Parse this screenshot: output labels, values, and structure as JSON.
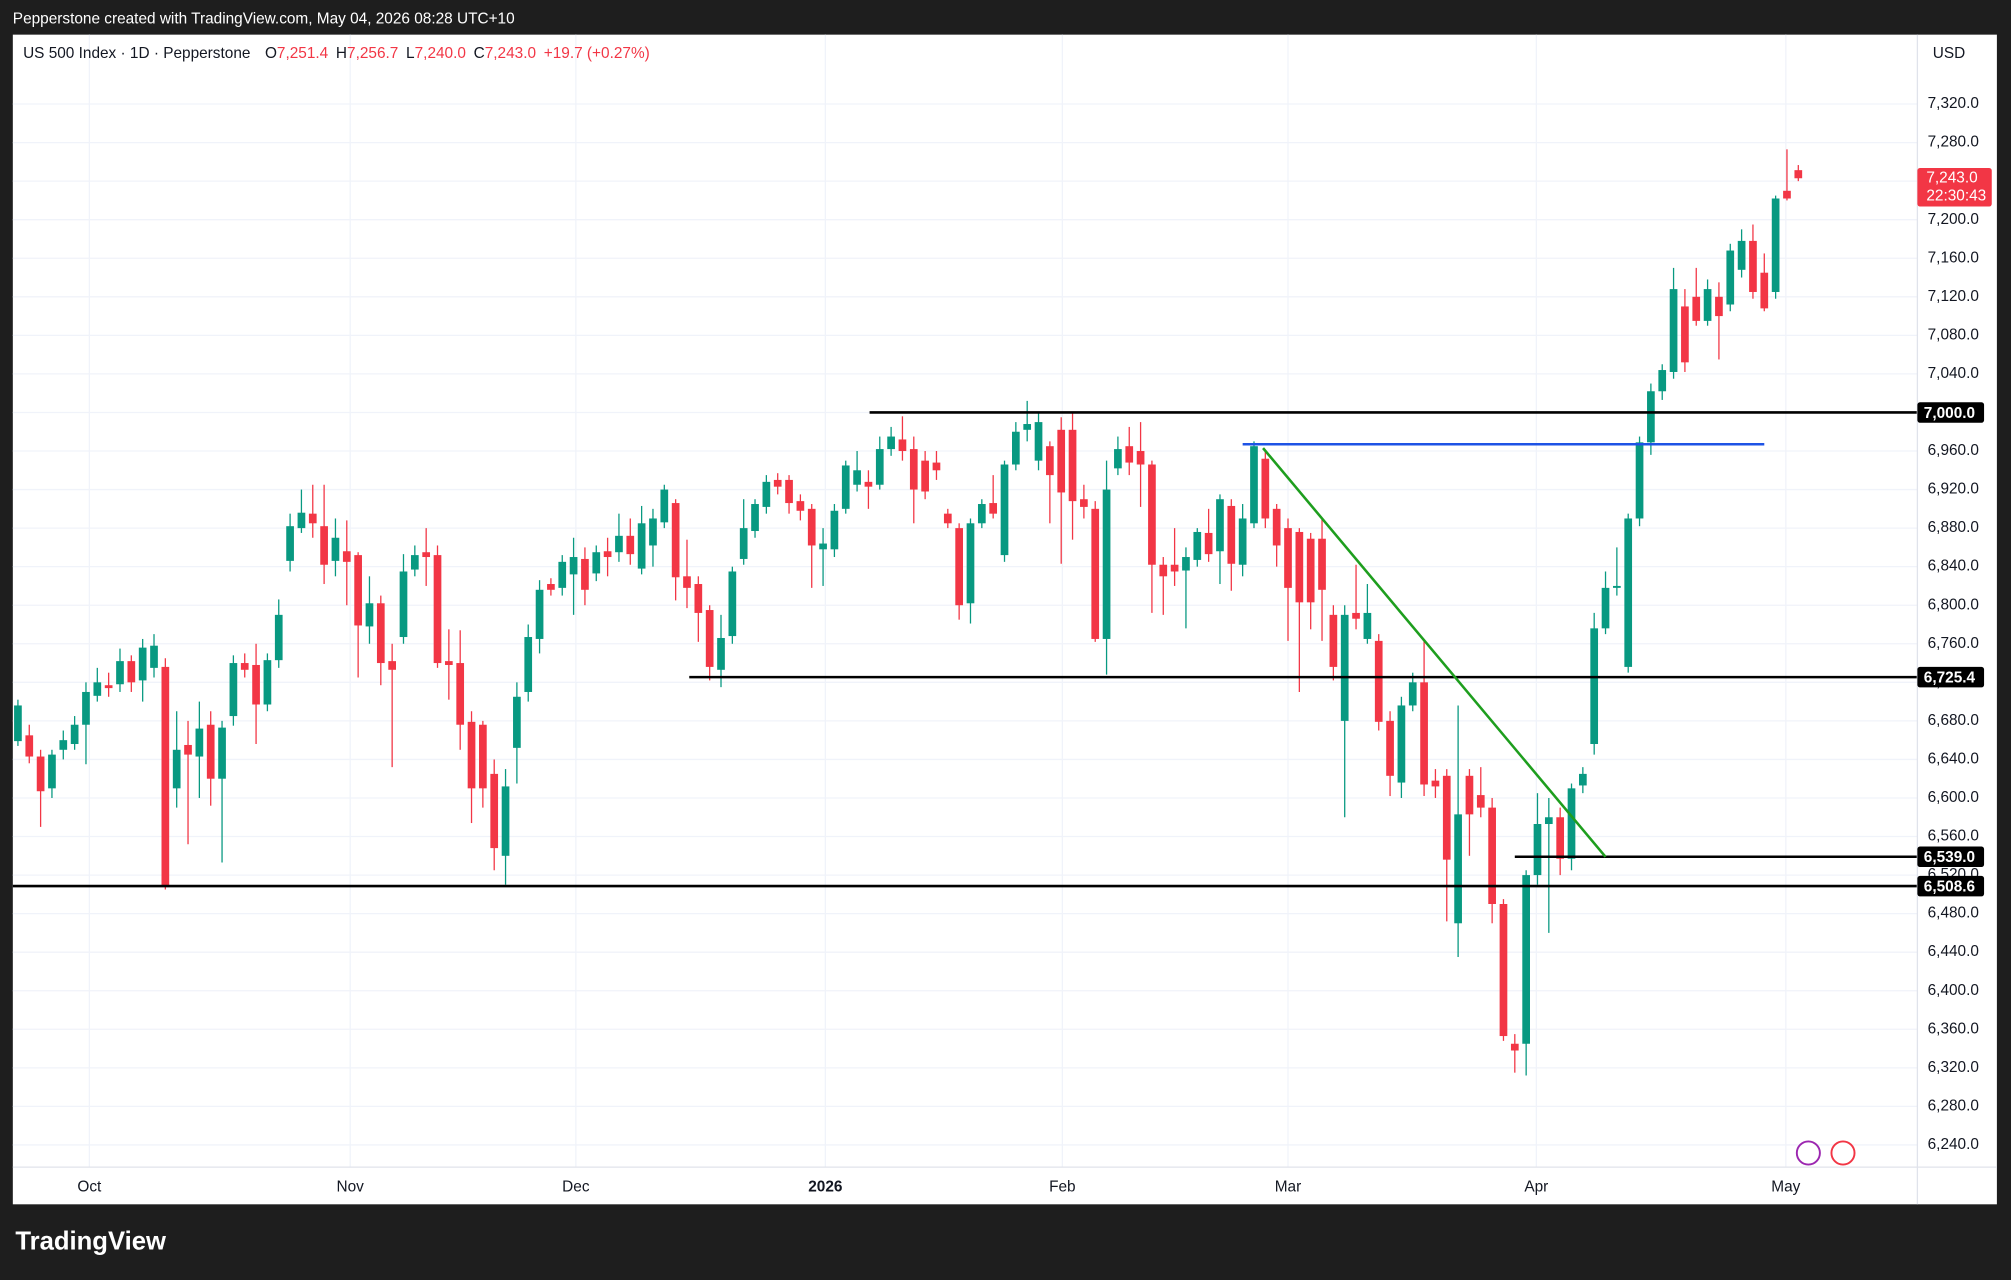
{
  "header": "Pepperstone created with TradingView.com, May 04, 2026 08:28 UTC+10",
  "footer": {
    "brand": "TradingView"
  },
  "chart_data": {
    "type": "candlestick",
    "legend": {
      "symbol": "US 500 Index · 1D · Pepperstone",
      "ohlc": [
        {
          "key": "O",
          "value": "7,251.4"
        },
        {
          "key": "H",
          "value": "7,256.7"
        },
        {
          "key": "L",
          "value": "7,240.0"
        },
        {
          "key": "C",
          "value": "7,243.0"
        }
      ],
      "change": "+19.7 (+0.27%)"
    },
    "currency": "USD",
    "up_color": "#089981",
    "down_color": "#f23645",
    "xlim": [
      -0.45,
      167.5
    ],
    "xticks": [
      {
        "value": 6.3,
        "label": "Oct"
      },
      {
        "value": 29.3,
        "label": "Nov"
      },
      {
        "value": 49.2,
        "label": "Dec"
      },
      {
        "value": 71.2,
        "label": "2026"
      },
      {
        "value": 92.1,
        "label": "Feb"
      },
      {
        "value": 112,
        "label": "Mar"
      },
      {
        "value": 133.9,
        "label": "Apr"
      },
      {
        "value": 155.9,
        "label": "May"
      }
    ],
    "ylim": [
      6217,
      7392
    ],
    "yticks": [
      {
        "value": 6240,
        "label": "6,240.0"
      },
      {
        "value": 6280,
        "label": "6,280.0"
      },
      {
        "value": 6320,
        "label": "6,320.0"
      },
      {
        "value": 6360,
        "label": "6,360.0"
      },
      {
        "value": 6400,
        "label": "6,400.0"
      },
      {
        "value": 6440,
        "label": "6,440.0"
      },
      {
        "value": 6480,
        "label": "6,480.0"
      },
      {
        "value": 6520,
        "label": "6,520.0"
      },
      {
        "value": 6560,
        "label": "6,560.0"
      },
      {
        "value": 6600,
        "label": "6,600.0"
      },
      {
        "value": 6640,
        "label": "6,640.0"
      },
      {
        "value": 6680,
        "label": "6,680.0"
      },
      {
        "value": 6720,
        "label": "6,720.0"
      },
      {
        "value": 6760,
        "label": "6,760.0"
      },
      {
        "value": 6800,
        "label": "6,800.0"
      },
      {
        "value": 6840,
        "label": "6,840.0"
      },
      {
        "value": 6880,
        "label": "6,880.0"
      },
      {
        "value": 6920,
        "label": "6,920.0"
      },
      {
        "value": 6960,
        "label": "6,960.0"
      },
      {
        "value": 7000,
        "label": "7,000.0"
      },
      {
        "value": 7040,
        "label": "7,040.0"
      },
      {
        "value": 7080,
        "label": "7,080.0"
      },
      {
        "value": 7120,
        "label": "7,120.0"
      },
      {
        "value": 7160,
        "label": "7,160.0"
      },
      {
        "value": 7200,
        "label": "7,200.0"
      },
      {
        "value": 7240,
        "label": "7,240.0"
      },
      {
        "value": 7280,
        "label": "7,280.0"
      },
      {
        "value": 7320,
        "label": "7,320.0"
      }
    ],
    "grid": true,
    "series": [
      {
        "name": "US 500 Index",
        "open": [
          6659,
          6665,
          6643,
          6610,
          6650,
          6656,
          6676,
          6706,
          6717,
          6718,
          6742,
          6722,
          6735,
          6736,
          6610,
          6655,
          6643,
          6676,
          6620,
          6685,
          6740,
          6738,
          6697,
          6743,
          6846,
          6880,
          6895,
          6882,
          6846,
          6856,
          6852,
          6778,
          6802,
          6742,
          6767,
          6837,
          6855,
          6852,
          6742,
          6740,
          6679,
          6676,
          6625,
          6540,
          6652,
          6710,
          6765,
          6822,
          6818,
          6832,
          6848,
          6833,
          6856,
          6855,
          6872,
          6838,
          6862,
          6886,
          6906,
          6830,
          6822,
          6795,
          6733,
          6768,
          6848,
          6877,
          6902,
          6930,
          6930,
          6908,
          6900,
          6858,
          6858,
          6900,
          6925,
          6928,
          6925,
          6962,
          6972,
          6962,
          6950,
          6948,
          6895,
          6880,
          6802,
          6885,
          6906,
          6852,
          6946,
          6982,
          6950,
          6965,
          6982,
          6982,
          6910,
          6900,
          6765,
          6942,
          6965,
          6960,
          6946,
          6842,
          6842,
          6836,
          6847,
          6875,
          6856,
          6903,
          6842,
          6885,
          6952,
          6900,
          6880,
          6876,
          6869,
          6869,
          6790,
          6680,
          6792,
          6765,
          6763,
          6680,
          6616,
          6696,
          6720,
          6618,
          6623,
          6470,
          6623,
          6603,
          6590,
          6490,
          6345,
          6345,
          6520,
          6573,
          6580,
          6537,
          6613,
          6656,
          6776,
          6818,
          6736,
          6890,
          6969,
          7022,
          7042,
          7110,
          7120,
          7095,
          7120,
          7112,
          7148,
          7178,
          7145,
          7125,
          7230,
          7251.4
        ],
        "high": [
          6702,
          6676,
          6650,
          6650,
          6670,
          6685,
          6720,
          6735,
          6730,
          6755,
          6748,
          6765,
          6770,
          6745,
          6690,
          6680,
          6700,
          6690,
          6680,
          6748,
          6750,
          6760,
          6750,
          6806,
          6895,
          6920,
          6925,
          6925,
          6890,
          6888,
          6855,
          6830,
          6810,
          6760,
          6853,
          6862,
          6880,
          6862,
          6775,
          6774,
          6690,
          6680,
          6640,
          6630,
          6720,
          6780,
          6826,
          6828,
          6852,
          6870,
          6860,
          6862,
          6870,
          6895,
          6890,
          6903,
          6900,
          6925,
          6910,
          6868,
          6830,
          6800,
          6790,
          6840,
          6910,
          6910,
          6935,
          6937,
          6935,
          6915,
          6905,
          6880,
          6905,
          6950,
          6960,
          6940,
          6975,
          6985,
          6996,
          6975,
          6960,
          6960,
          6900,
          6885,
          6890,
          6910,
          6935,
          6950,
          6990,
          7012,
          7000,
          6970,
          6995,
          7000,
          6925,
          6908,
          6950,
          6975,
          6985,
          6990,
          6950,
          6850,
          6880,
          6860,
          6880,
          6900,
          6915,
          6910,
          6905,
          6970,
          6960,
          6905,
          6890,
          6880,
          6875,
          6890,
          6800,
          6800,
          6842,
          6822,
          6770,
          6690,
          6705,
          6730,
          6763,
          6630,
          6630,
          6696,
          6630,
          6632,
          6600,
          6495,
          6355,
          6525,
          6605,
          6600,
          6590,
          6615,
          6632,
          6792,
          6835,
          6860,
          6895,
          6975,
          7030,
          7050,
          7150,
          7128,
          7150,
          7138,
          7135,
          7175,
          7190,
          7195,
          7165,
          7225,
          7273,
          7256.7
        ],
        "low": [
          6654,
          6636,
          6570,
          6600,
          6640,
          6650,
          6635,
          6700,
          6705,
          6710,
          6710,
          6700,
          6725,
          6505,
          6590,
          6552,
          6600,
          6592,
          6533,
          6675,
          6725,
          6656,
          6690,
          6735,
          6835,
          6875,
          6870,
          6822,
          6830,
          6800,
          6725,
          6760,
          6717,
          6632,
          6760,
          6830,
          6820,
          6735,
          6702,
          6650,
          6574,
          6590,
          6525,
          6510,
          6615,
          6700,
          6750,
          6810,
          6810,
          6790,
          6800,
          6825,
          6830,
          6845,
          6842,
          6832,
          6840,
          6880,
          6805,
          6797,
          6762,
          6722,
          6715,
          6760,
          6842,
          6870,
          6895,
          6915,
          6895,
          6888,
          6818,
          6820,
          6850,
          6895,
          6918,
          6900,
          6920,
          6955,
          6950,
          6885,
          6910,
          6930,
          6880,
          6785,
          6781,
          6880,
          6890,
          6845,
          6940,
          6970,
          6940,
          6885,
          6843,
          6868,
          6890,
          6762,
          6728,
          6935,
          6935,
          6902,
          6792,
          6790,
          6820,
          6776,
          6840,
          6845,
          6822,
          6815,
          6830,
          6880,
          6880,
          6840,
          6763,
          6710,
          6775,
          6763,
          6722,
          6580,
          6775,
          6760,
          6670,
          6602,
          6600,
          6690,
          6602,
          6600,
          6472,
          6435,
          6540,
          6580,
          6470,
          6348,
          6315,
          6312,
          6510,
          6460,
          6520,
          6525,
          6605,
          6645,
          6770,
          6810,
          6730,
          6882,
          6956,
          7013,
          7035,
          7042,
          7090,
          7090,
          7055,
          7105,
          7140,
          7118,
          7105,
          7118,
          7220,
          7240
        ],
        "close": [
          6696,
          6643,
          6607,
          6645,
          6660,
          6676,
          6710,
          6720,
          6714,
          6742,
          6720,
          6756,
          6758,
          6508,
          6650,
          6645,
          6672,
          6620,
          6673,
          6740,
          6733,
          6697,
          6743,
          6790,
          6882,
          6896,
          6885,
          6842,
          6870,
          6845,
          6779,
          6802,
          6740,
          6733,
          6835,
          6852,
          6850,
          6740,
          6738,
          6676,
          6610,
          6610,
          6548,
          6612,
          6705,
          6767,
          6816,
          6816,
          6845,
          6850,
          6816,
          6855,
          6850,
          6872,
          6853,
          6885,
          6890,
          6920,
          6829,
          6818,
          6792,
          6736,
          6766,
          6835,
          6880,
          6905,
          6928,
          6923,
          6906,
          6898,
          6862,
          6864,
          6898,
          6945,
          6940,
          6923,
          6962,
          6975,
          6960,
          6920,
          6918,
          6940,
          6885,
          6800,
          6885,
          6905,
          6895,
          6946,
          6980,
          6988,
          6990,
          6935,
          6917,
          6908,
          6902,
          6765,
          6920,
          6962,
          6948,
          6946,
          6842,
          6830,
          6835,
          6850,
          6876,
          6853,
          6910,
          6843,
          6890,
          6965,
          6890,
          6862,
          6818,
          6803,
          6803,
          6816,
          6736,
          6790,
          6786,
          6792,
          6679,
          6623,
          6696,
          6720,
          6614,
          6612,
          6536,
          6583,
          6583,
          6590,
          6490,
          6353,
          6338,
          6520,
          6573,
          6580,
          6537,
          6610,
          6625,
          6776,
          6818,
          6820,
          6890,
          6969,
          7022,
          7044,
          7128,
          7052,
          7095,
          7128,
          7100,
          7168,
          7178,
          7125,
          7108,
          7222,
          7222,
          7243
        ]
      }
    ],
    "hlines": [
      {
        "value": 7000,
        "label": "7,000.0",
        "start": 75.1,
        "color": "#000000"
      },
      {
        "value": 6725.4,
        "label": "6,725.4",
        "start": 59.2,
        "color": "#000000"
      },
      {
        "value": 6539,
        "label": "6,539.0",
        "start": 132,
        "color": "#000000"
      },
      {
        "value": 6508.6,
        "label": "6,508.6",
        "start": -0.45,
        "color": "#000000"
      }
    ],
    "segment": {
      "value": 6967,
      "start": 108,
      "end": 154,
      "color": "#1e53e5"
    },
    "trendline": {
      "points": [
        [
          109.8,
          6963
        ],
        [
          140,
          6539
        ]
      ],
      "color": "#1e9e1e"
    },
    "last_price": {
      "value": 7243,
      "label": "7,243.0",
      "countdown": "22:30:43"
    }
  }
}
